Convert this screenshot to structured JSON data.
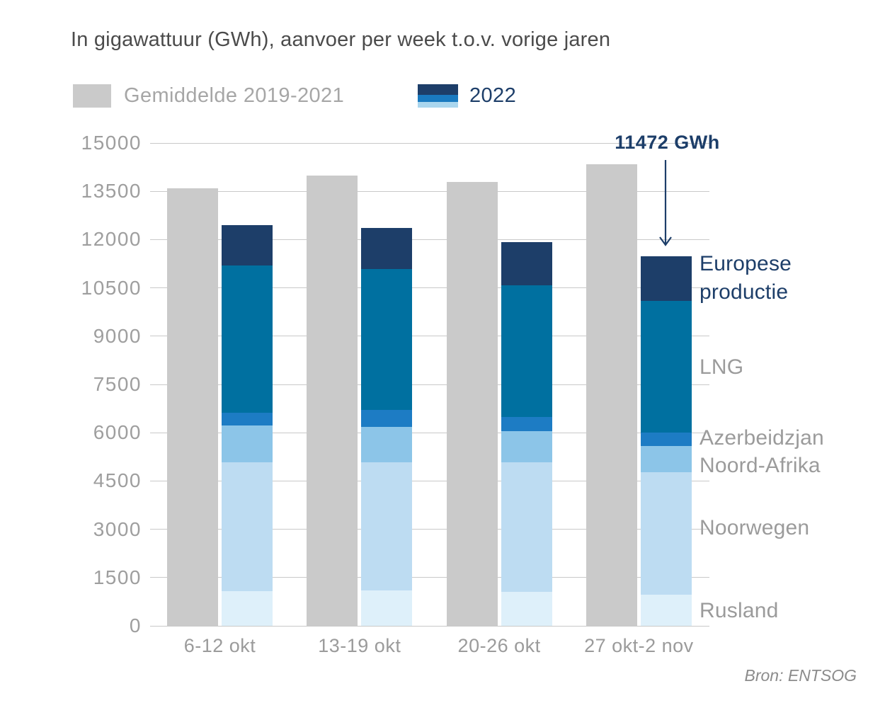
{
  "title": "In gigawattuur (GWh), aanvoer per week t.o.v. vorige jaren",
  "legend": {
    "average_label": "Gemiddelde 2019-2021",
    "year_label": "2022"
  },
  "annotation": {
    "text": "11472 GWh"
  },
  "source": "Bron: ENTSOG",
  "colors": {
    "navy": "#1d3e69",
    "average_bar": "#cacaca",
    "gridline": "#c9c9c9",
    "title_text": "#4b4b4b",
    "axis_text": "#9e9e9e",
    "legend_average_text": "#a6a6a6",
    "source_text": "#8c8c8c"
  },
  "chart_data": {
    "type": "bar",
    "title": "In gigawattuur (GWh), aanvoer per week t.o.v. vorige jaren",
    "categories": [
      "6-12 okt",
      "13-19 okt",
      "20-26 okt",
      "27 okt-2 nov"
    ],
    "ylim": [
      0,
      15000
    ],
    "yticks": [
      0,
      1500,
      3000,
      4500,
      6000,
      7500,
      9000,
      10500,
      12000,
      13500,
      15000
    ],
    "grid": true,
    "legend_position": "top",
    "average_series": {
      "name": "Gemiddelde 2019-2021",
      "color": "#cacaca",
      "values": [
        13600,
        13980,
        13800,
        14340
      ]
    },
    "stacked_series_2022": {
      "name": "2022",
      "totals": [
        12450,
        12370,
        11930,
        11472
      ],
      "segments": [
        {
          "name": "Rusland",
          "color": "#def0fa",
          "values": [
            1080,
            1100,
            1060,
            970
          ]
        },
        {
          "name": "Noorwegen",
          "color": "#bddcf2",
          "values": [
            4000,
            3980,
            4020,
            3800
          ]
        },
        {
          "name": "Noord-Afrika",
          "color": "#8cc5e8",
          "values": [
            1150,
            1100,
            970,
            810
          ]
        },
        {
          "name": "Azerbeidzjan",
          "color": "#1d7cc4",
          "values": [
            400,
            530,
            440,
            420
          ]
        },
        {
          "name": "LNG",
          "color": "#0070a0",
          "values": [
            4570,
            4380,
            4100,
            4100
          ]
        },
        {
          "name": "Europese productie",
          "color": "#1d3e69",
          "values": [
            1250,
            1280,
            1340,
            1372
          ]
        }
      ]
    },
    "annotation": {
      "text": "11472 GWh",
      "target": "27 okt-2 nov 2022 total"
    }
  }
}
